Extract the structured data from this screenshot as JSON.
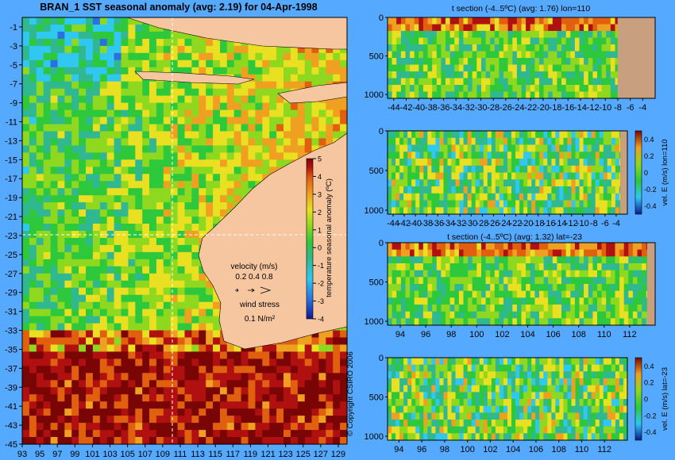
{
  "colors": {
    "background": "#55aaff",
    "land_map": "#f5c6a0",
    "land_section": "#c8a080",
    "dashed_line": "#ffffff"
  },
  "copyright": "© Copyright CSIRO 2006",
  "colormap": [
    "#0a1a90",
    "#2a70e0",
    "#30c8f0",
    "#30b890",
    "#2ec83c",
    "#8ed820",
    "#e8e020",
    "#f0a020",
    "#e06010",
    "#b01010",
    "#7a0505"
  ],
  "chart_data": [
    {
      "type": "heatmap",
      "id": "sst-map",
      "title": "BRAN_1  SST seasonal anomaly (avg: 2.19) for 04-Apr-1998",
      "x_ticks": [
        "93",
        "95",
        "97",
        "99",
        "101",
        "103",
        "105",
        "107",
        "109",
        "111",
        "113",
        "115",
        "117",
        "119",
        "121",
        "123",
        "125",
        "127",
        "129"
      ],
      "y_ticks": [
        "-1",
        "-3",
        "-5",
        "-7",
        "-9",
        "-11",
        "-13",
        "-15",
        "-17",
        "-19",
        "-21",
        "-23",
        "-25",
        "-27",
        "-29",
        "-31",
        "-33",
        "-35",
        "-37",
        "-39",
        "-41",
        "-43",
        "-45"
      ],
      "xlim": [
        93,
        130
      ],
      "ylim": [
        -45,
        0
      ],
      "dashed_lon": 110,
      "dashed_lat": -23,
      "colorbar": {
        "label": "temperature seasonal anomaly (ºC)",
        "ticks": [
          "5",
          "4",
          "3",
          "2",
          "1",
          "0",
          "-1",
          "-2",
          "-3",
          "-4"
        ],
        "range": [
          -4,
          5
        ]
      },
      "velocity_legend": {
        "title": "velocity (m/s)",
        "scale": "0.2 0.4 0.8"
      },
      "wind_legend": {
        "title": "wind stress",
        "scale": "0.1 N/m²"
      }
    },
    {
      "type": "heatmap",
      "id": "t-section-lon110",
      "title": "t section (-4..5ºC) (avg: 1.76) lon=110",
      "x_ticks": [
        "-44",
        "-42",
        "-40",
        "-38",
        "-36",
        "-34",
        "-32",
        "-30",
        "-28",
        "-26",
        "-24",
        "-22",
        "-20",
        "-18",
        "-16",
        "-14",
        "-12",
        "-10",
        "-8",
        "-6",
        "-4"
      ],
      "xlim": [
        -45,
        -2
      ],
      "y_ticks": [
        "0",
        "500",
        "1000"
      ],
      "ylim": [
        1050,
        0
      ]
    },
    {
      "type": "heatmap",
      "id": "vel-e-lon110",
      "title": "",
      "x_ticks": [
        "-44",
        "-42",
        "-40",
        "-38",
        "-36",
        "-34",
        "-32",
        "-30",
        "-28",
        "-26",
        "-24",
        "-22",
        "-20",
        "-18",
        "-16",
        "-14",
        "-12",
        "-10",
        "-8",
        "-6",
        "-4"
      ],
      "xlim": [
        -45,
        -2
      ],
      "y_ticks": [
        "0",
        "500",
        "1000"
      ],
      "ylim": [
        1050,
        0
      ],
      "colorbar": {
        "label": "vel. E (m/s) lon=110",
        "ticks": [
          "0.4",
          "0.2",
          "0",
          "-0.2",
          "-0.4"
        ],
        "range": [
          -0.5,
          0.5
        ]
      }
    },
    {
      "type": "heatmap",
      "id": "t-section-lat-23",
      "title": "t section (-4..5ºC) (avg: 1.32) lat=-23",
      "x_ticks": [
        "94",
        "96",
        "98",
        "100",
        "102",
        "104",
        "106",
        "108",
        "110",
        "112"
      ],
      "xlim": [
        93,
        114
      ],
      "y_ticks": [
        "0",
        "500",
        "1000"
      ],
      "ylim": [
        1050,
        0
      ]
    },
    {
      "type": "heatmap",
      "id": "vel-e-lat-23",
      "title": "",
      "x_ticks": [
        "94",
        "96",
        "98",
        "100",
        "102",
        "104",
        "106",
        "108",
        "110",
        "112"
      ],
      "xlim": [
        93,
        114
      ],
      "y_ticks": [
        "0",
        "500",
        "1000"
      ],
      "ylim": [
        1050,
        0
      ],
      "colorbar": {
        "label": "vel. E (m/s) lat=-23",
        "ticks": [
          "0.4",
          "0.2",
          "0",
          "-0.2",
          "-0.4"
        ],
        "range": [
          -0.5,
          0.5
        ]
      }
    }
  ]
}
